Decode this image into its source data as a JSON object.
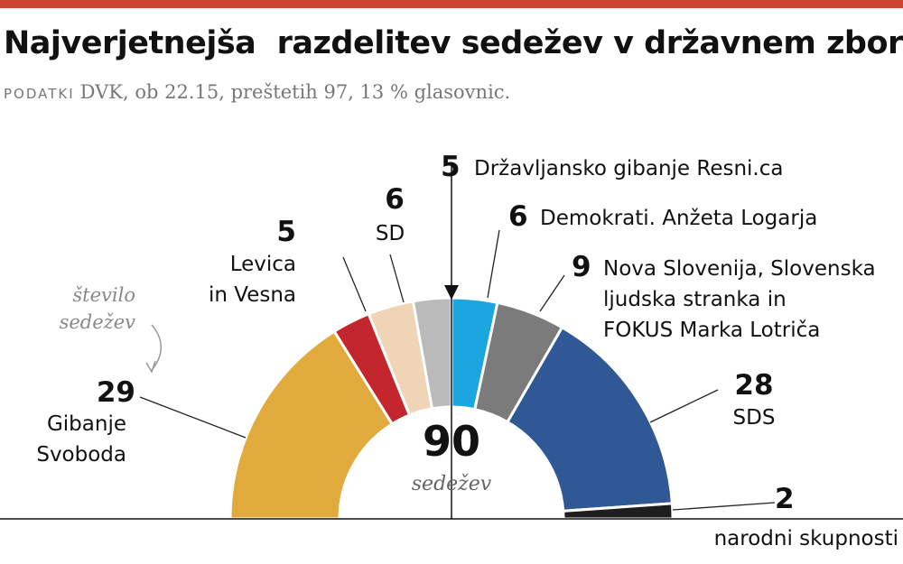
{
  "chart_data": {
    "type": "parliament",
    "title": "Najverjetnejša  razdelitev sedežev v državnem zboru",
    "source_label": "PODATKI",
    "subtitle": "DVK, ob 22.15, preštetih 97, 13 % glasovnic.",
    "annotation": "število\nsedežev",
    "total": 90,
    "total_label": "sedežev",
    "categories": [
      "Gibanje\nSvoboda",
      "Levica\nin Vesna",
      "SD",
      "Državljansko gibanje Resni.ca",
      "Demokrati. Anžeta Logarja",
      "Nova Slovenija, Slovenska\nljudska stranka in\nFOKUS Marka Lotriča",
      "SDS",
      "narodni skupnosti"
    ],
    "values": [
      29,
      5,
      6,
      5,
      6,
      9,
      28,
      2
    ],
    "colors": [
      "#e0aa3c",
      "#c4262e",
      "#efd4b6",
      "#bababa",
      "#1ca6df",
      "#7b7b7b",
      "#2f5894",
      "#1e1e1e"
    ]
  }
}
